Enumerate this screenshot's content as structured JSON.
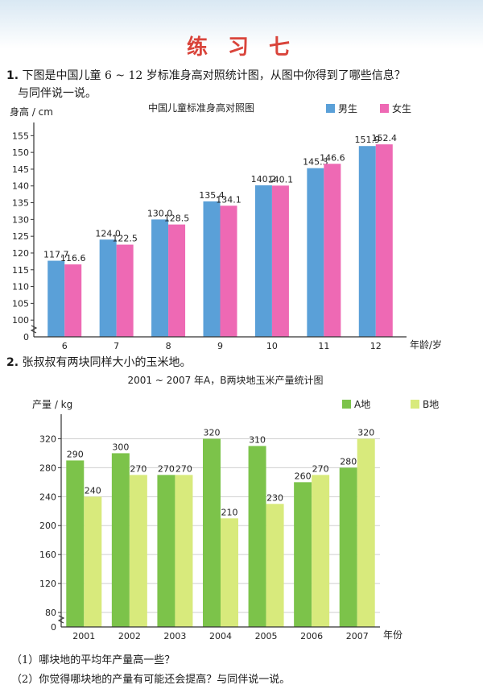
{
  "page": {
    "title": "练 习 七",
    "q1_number": "1.",
    "q1_text": "下图是中国儿童 6 ~ 12 岁标准身高对照统计图，从图中你得到了哪些信息？",
    "q1_text2": "与同伴说一说。",
    "q2_number": "2.",
    "q2_text": "张叔叔有两块同样大小的玉米地。",
    "sub1": "（1）哪块地的平均年产量高一些？",
    "sub2": "（2）你觉得哪块地的产量有可能还会提高？与同伴说一说。"
  },
  "chart_data": [
    {
      "type": "bar",
      "title": "中国儿童标准身高对照图",
      "ylabel": "身高 / cm",
      "xlabel": "年龄/岁",
      "categories": [
        "6",
        "7",
        "8",
        "9",
        "10",
        "11",
        "12"
      ],
      "series": [
        {
          "name": "男生",
          "color": "#5aa0d8",
          "values": [
            117.7,
            124.0,
            130.0,
            135.4,
            140.2,
            145.3,
            151.9
          ],
          "labels": [
            "117.7",
            "124.0",
            "130.0",
            "135.4",
            "140.2",
            "145.3",
            "151.9"
          ]
        },
        {
          "name": "女生",
          "color": "#ee69b4",
          "values": [
            116.6,
            122.5,
            128.5,
            134.1,
            140.1,
            146.6,
            152.4
          ],
          "labels": [
            "116.6",
            "122.5",
            "128.5",
            "134.1",
            "140.1",
            "146.6",
            "152.4"
          ]
        }
      ],
      "ylim": [
        95,
        157
      ],
      "yticks": [
        "100",
        "105",
        "110",
        "115",
        "120",
        "125",
        "130",
        "135",
        "140",
        "145",
        "150",
        "155"
      ],
      "zero_label": "0",
      "axis_break": true,
      "legend_position": "top-right",
      "grid": false
    },
    {
      "type": "bar",
      "title": "2001 ~ 2007 年A，B两块地玉米产量统计图",
      "ylabel": "产量 / kg",
      "xlabel": "年份",
      "categories": [
        "2001",
        "2002",
        "2003",
        "2004",
        "2005",
        "2006",
        "2007"
      ],
      "series": [
        {
          "name": "A地",
          "color": "#7cc34a",
          "values": [
            290,
            300,
            270,
            320,
            310,
            260,
            280
          ],
          "labels": [
            "290",
            "300",
            "270",
            "320",
            "310",
            "260",
            "280"
          ]
        },
        {
          "name": "B地",
          "color": "#d8ea7c",
          "values": [
            240,
            270,
            270,
            210,
            230,
            270,
            320
          ],
          "labels": [
            "240",
            "270",
            "270",
            "210",
            "230",
            "270",
            "320"
          ]
        }
      ],
      "ylim": [
        60,
        345
      ],
      "yticks": [
        "80",
        "120",
        "160",
        "200",
        "240",
        "280",
        "320"
      ],
      "zero_label": "0",
      "axis_break": true,
      "legend_position": "top-right",
      "grid": true
    }
  ]
}
